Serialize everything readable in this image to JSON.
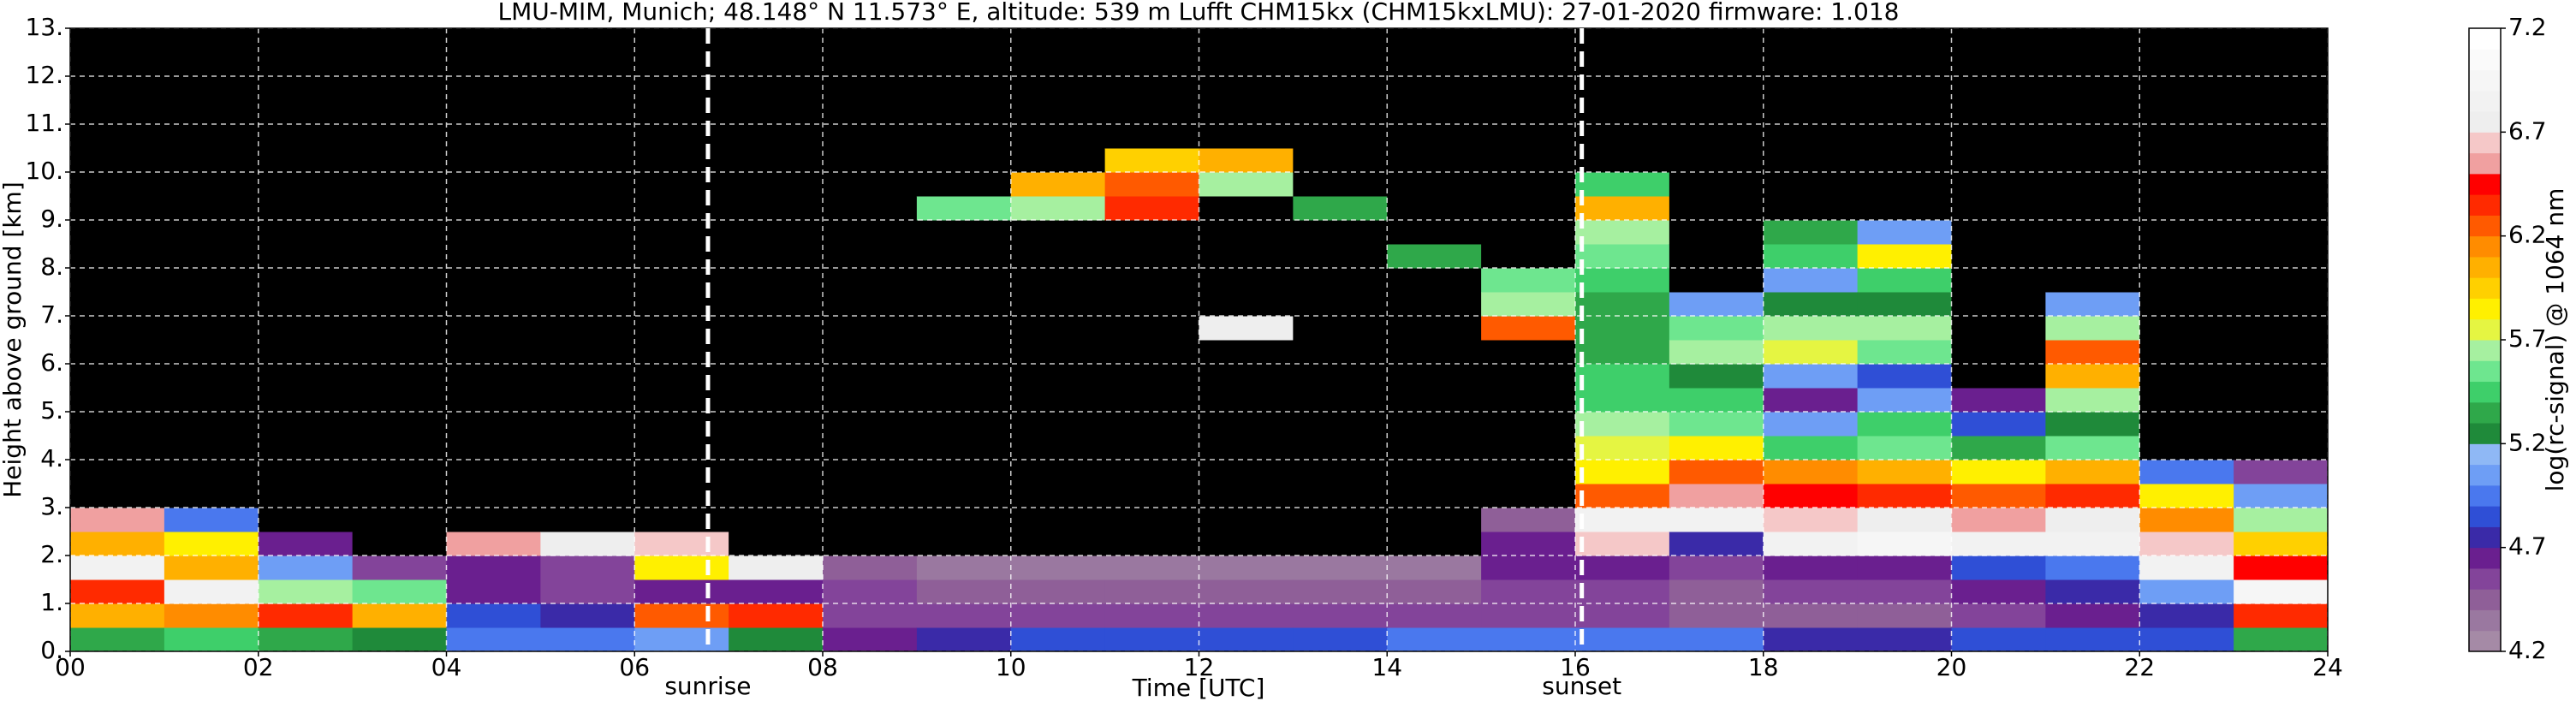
{
  "chart_data": {
    "type": "heatmap",
    "title": "LMU-MIM, Munich; 48.148° N 11.573° E, altitude: 539 m    Lufft CHM15kx (CHM15kxLMU): 27-01-2020    firmware: 1.018",
    "x_label": "Time [UTC]",
    "y_label": "Height above ground [km]",
    "xlim": [
      0,
      24
    ],
    "ylim": [
      0,
      13
    ],
    "xticks": [
      {
        "value": 0,
        "label": "00"
      },
      {
        "value": 2,
        "label": "02"
      },
      {
        "value": 4,
        "label": "04"
      },
      {
        "value": 6,
        "label": "06"
      },
      {
        "value": 8,
        "label": "08"
      },
      10,
      12,
      14,
      16,
      18,
      20,
      22,
      24
    ],
    "yticks": [
      {
        "value": 0,
        "label": "0."
      },
      {
        "value": 1,
        "label": "1."
      },
      {
        "value": 2,
        "label": "2."
      },
      {
        "value": 3,
        "label": "3."
      },
      {
        "value": 4,
        "label": "4."
      },
      {
        "value": 5,
        "label": "5."
      },
      {
        "value": 6,
        "label": "6."
      },
      {
        "value": 7,
        "label": "7."
      },
      {
        "value": 8,
        "label": "8."
      },
      {
        "value": 9,
        "label": "9."
      },
      {
        "value": 10,
        "label": "10."
      },
      {
        "value": 11,
        "label": "11."
      },
      {
        "value": 12,
        "label": "12."
      },
      {
        "value": 13,
        "label": "13."
      }
    ],
    "grid": true,
    "grid_color": "#ffffff",
    "x_edges": [
      0,
      1,
      2,
      3,
      4,
      5,
      6,
      7,
      8,
      9,
      10,
      11,
      12,
      13,
      14,
      15,
      16,
      17,
      18,
      19,
      20,
      21,
      22,
      23,
      24
    ],
    "y_edges": [
      0,
      0.5,
      1,
      1.5,
      2,
      2.5,
      3,
      3.5,
      4,
      4.5,
      5,
      5.5,
      6,
      6.5,
      7,
      7.5,
      8,
      8.5,
      9,
      9.5,
      10,
      10.5,
      11,
      11.5,
      12,
      12.5,
      13
    ],
    "z": [
      [
        5.3,
        6.0,
        6.3,
        6.8,
        6.0,
        6.5,
        4.0,
        4.0,
        4.0,
        4.0,
        4.0,
        4.0,
        4.0,
        4.0,
        4.0,
        4.0,
        4.0,
        4.0,
        4.0,
        4.0,
        4.0,
        4.0,
        4.0,
        4.0,
        4.0,
        4.0
      ],
      [
        5.4,
        6.1,
        6.8,
        6.0,
        5.8,
        4.9,
        4.0,
        4.0,
        4.0,
        4.0,
        4.0,
        4.0,
        4.0,
        4.0,
        4.0,
        4.0,
        4.0,
        4.0,
        4.0,
        4.0,
        4.0,
        4.0,
        4.0,
        4.0,
        4.0,
        4.0
      ],
      [
        5.3,
        6.3,
        5.6,
        5.0,
        4.6,
        4.0,
        4.0,
        4.0,
        4.0,
        4.0,
        4.0,
        4.0,
        4.0,
        4.0,
        4.0,
        4.0,
        4.0,
        4.0,
        4.0,
        4.0,
        4.0,
        4.0,
        4.0,
        4.0,
        4.0,
        4.0
      ],
      [
        5.2,
        6.0,
        5.5,
        4.5,
        4.0,
        4.0,
        4.0,
        4.0,
        4.0,
        4.0,
        4.0,
        4.0,
        4.0,
        4.0,
        4.0,
        4.0,
        4.0,
        4.0,
        4.0,
        4.0,
        4.0,
        4.0,
        4.0,
        4.0,
        4.0,
        4.0
      ],
      [
        4.9,
        4.8,
        4.6,
        4.6,
        6.5,
        4.0,
        4.0,
        4.0,
        4.0,
        4.0,
        4.0,
        4.0,
        4.0,
        4.0,
        4.0,
        4.0,
        4.0,
        4.0,
        4.0,
        4.0,
        4.0,
        4.0,
        4.0,
        4.0,
        4.0,
        4.0
      ],
      [
        4.9,
        4.7,
        4.5,
        4.5,
        6.7,
        4.0,
        4.0,
        4.0,
        4.0,
        4.0,
        4.0,
        4.0,
        4.0,
        4.0,
        4.0,
        4.0,
        4.0,
        4.0,
        4.0,
        4.0,
        4.0,
        4.0,
        4.0,
        4.0,
        4.0,
        4.0
      ],
      [
        5.0,
        6.2,
        4.6,
        5.8,
        6.6,
        4.0,
        4.0,
        4.0,
        4.0,
        4.0,
        4.0,
        4.0,
        4.0,
        4.0,
        4.0,
        4.0,
        4.0,
        4.0,
        4.0,
        4.0,
        4.0,
        4.0,
        4.0,
        4.0,
        4.0,
        4.0
      ],
      [
        5.2,
        6.3,
        4.6,
        6.7,
        4.0,
        4.0,
        4.0,
        4.0,
        4.0,
        4.0,
        4.0,
        4.0,
        4.0,
        4.0,
        4.0,
        4.0,
        4.0,
        4.0,
        4.0,
        4.0,
        4.0,
        4.0,
        4.0,
        4.0,
        4.0,
        4.0
      ],
      [
        4.6,
        4.5,
        4.5,
        4.4,
        4.0,
        4.0,
        4.0,
        4.0,
        4.0,
        4.0,
        4.0,
        4.0,
        4.0,
        4.0,
        4.0,
        4.0,
        4.0,
        4.0,
        4.0,
        4.0,
        4.0,
        4.0,
        4.0,
        4.0,
        4.0,
        4.0
      ],
      [
        4.7,
        4.5,
        4.4,
        4.3,
        4.0,
        4.0,
        4.0,
        4.0,
        4.0,
        4.0,
        4.0,
        4.0,
        4.0,
        4.0,
        4.0,
        4.0,
        4.0,
        4.0,
        5.5,
        4.0,
        4.0,
        4.0,
        4.0,
        4.0,
        4.0,
        4.0
      ],
      [
        4.8,
        4.5,
        4.4,
        4.3,
        4.0,
        4.0,
        4.0,
        4.0,
        4.0,
        4.0,
        4.0,
        4.0,
        4.0,
        4.0,
        4.0,
        4.0,
        4.0,
        4.0,
        5.6,
        6.0,
        4.0,
        4.0,
        4.0,
        4.0,
        4.0,
        4.0
      ],
      [
        4.8,
        4.5,
        4.4,
        4.3,
        4.0,
        4.0,
        4.0,
        4.0,
        4.0,
        4.0,
        4.0,
        4.0,
        4.0,
        4.0,
        4.0,
        4.0,
        4.0,
        4.0,
        6.3,
        6.2,
        5.9,
        4.0,
        4.0,
        4.0,
        4.0,
        4.0
      ],
      [
        4.8,
        4.5,
        4.4,
        4.3,
        4.0,
        4.0,
        4.0,
        4.0,
        4.0,
        4.0,
        4.0,
        4.0,
        4.0,
        6.7,
        4.0,
        4.0,
        4.0,
        4.0,
        4.0,
        5.6,
        6.0,
        4.0,
        4.0,
        4.0,
        4.0,
        4.0
      ],
      [
        4.8,
        4.5,
        4.4,
        4.3,
        4.0,
        4.0,
        4.0,
        4.0,
        4.0,
        4.0,
        4.0,
        4.0,
        4.0,
        4.0,
        4.0,
        4.0,
        4.0,
        4.0,
        5.3,
        4.0,
        4.0,
        4.0,
        4.0,
        4.0,
        4.0,
        4.0
      ],
      [
        4.9,
        4.5,
        4.4,
        4.3,
        4.0,
        4.0,
        4.0,
        4.0,
        4.0,
        4.0,
        4.0,
        4.0,
        4.0,
        4.0,
        4.0,
        4.0,
        5.3,
        4.0,
        4.0,
        4.0,
        4.0,
        4.0,
        4.0,
        4.0,
        4.0,
        4.0
      ],
      [
        4.9,
        4.5,
        4.5,
        4.6,
        4.6,
        4.4,
        4.0,
        4.0,
        4.0,
        4.0,
        4.0,
        4.0,
        4.0,
        6.2,
        5.6,
        5.5,
        4.0,
        4.0,
        4.0,
        4.0,
        4.0,
        4.0,
        4.0,
        4.0,
        4.0,
        4.0
      ],
      [
        4.9,
        4.5,
        4.5,
        4.6,
        6.6,
        6.8,
        6.2,
        5.8,
        5.7,
        5.6,
        5.4,
        5.4,
        5.3,
        5.3,
        5.3,
        5.4,
        5.5,
        5.6,
        6.0,
        5.4,
        4.0,
        4.0,
        4.0,
        4.0,
        4.0,
        4.0
      ],
      [
        4.9,
        4.4,
        4.4,
        4.5,
        4.7,
        6.8,
        6.5,
        6.2,
        5.8,
        5.5,
        5.4,
        5.2,
        5.6,
        5.5,
        5.0,
        4.0,
        4.0,
        4.0,
        4.0,
        4.0,
        4.0,
        4.0,
        4.0,
        4.0,
        4.0,
        4.0
      ],
      [
        4.7,
        4.4,
        4.5,
        4.6,
        6.8,
        6.6,
        6.4,
        6.1,
        5.4,
        5.0,
        4.6,
        5.0,
        5.7,
        5.6,
        5.2,
        5.0,
        5.4,
        5.3,
        4.0,
        4.0,
        4.0,
        4.0,
        4.0,
        4.0,
        4.0,
        4.0
      ],
      [
        4.7,
        4.4,
        4.5,
        4.6,
        6.9,
        6.7,
        6.3,
        6.0,
        5.5,
        5.4,
        5.0,
        4.8,
        5.5,
        5.6,
        5.2,
        5.4,
        5.8,
        5.0,
        4.0,
        4.0,
        4.0,
        4.0,
        4.0,
        4.0,
        4.0,
        4.0
      ],
      [
        4.8,
        4.5,
        4.6,
        4.8,
        6.8,
        6.5,
        6.2,
        5.8,
        5.3,
        4.8,
        4.6,
        4.0,
        4.0,
        4.0,
        4.0,
        4.0,
        4.0,
        4.0,
        4.0,
        4.0,
        4.0,
        4.0,
        4.0,
        4.0,
        4.0,
        4.0
      ],
      [
        4.8,
        4.6,
        4.7,
        4.9,
        6.8,
        6.7,
        6.3,
        6.0,
        5.5,
        5.2,
        5.6,
        6.0,
        6.2,
        5.6,
        5.0,
        4.0,
        4.0,
        4.0,
        4.0,
        4.0,
        4.0,
        4.0,
        4.0,
        4.0,
        4.0,
        4.0
      ],
      [
        4.8,
        4.7,
        5.0,
        6.8,
        6.6,
        6.1,
        5.8,
        4.9,
        4.0,
        4.0,
        4.0,
        4.0,
        4.0,
        4.0,
        4.0,
        4.0,
        4.0,
        4.0,
        4.0,
        4.0,
        4.0,
        4.0,
        4.0,
        4.0,
        4.0,
        4.0
      ],
      [
        5.3,
        6.3,
        6.9,
        6.4,
        5.9,
        5.6,
        5.0,
        4.5,
        4.0,
        4.0,
        4.0,
        4.0,
        4.0,
        4.0,
        4.0,
        4.0,
        4.0,
        4.0,
        4.0,
        4.0,
        4.0,
        4.0,
        4.0,
        4.0,
        4.0,
        4.0
      ]
    ],
    "vlines": [
      {
        "x": 6.78,
        "label": "sunrise"
      },
      {
        "x": 16.07,
        "label": "sunset"
      }
    ],
    "vline_color": "#ffffff",
    "colorbar": {
      "label": "log(rc-signal) @ 1064 nm",
      "under_color": "#000000",
      "bounds": [
        4.2,
        4.3,
        4.4,
        4.5,
        4.6,
        4.7,
        4.8,
        4.9,
        5.0,
        5.1,
        5.2,
        5.3,
        5.4,
        5.5,
        5.6,
        5.7,
        5.8,
        5.9,
        6.0,
        6.1,
        6.2,
        6.3,
        6.4,
        6.5,
        6.6,
        6.7,
        6.8,
        6.9,
        7.0,
        7.1,
        7.2
      ],
      "colors": [
        "#a58aa6",
        "#9a78a0",
        "#8f5f98",
        "#83449a",
        "#6a1f8f",
        "#3a2aa8",
        "#2f4fd6",
        "#4a78ee",
        "#6e9ef5",
        "#8fb8f5",
        "#1f8a3a",
        "#2fa84a",
        "#3ecf6a",
        "#6ee68f",
        "#a6f0a0",
        "#e5f542",
        "#fff000",
        "#ffd000",
        "#ffb000",
        "#ff8c00",
        "#ff5a00",
        "#ff2a00",
        "#ff0000",
        "#f0a0a0",
        "#f5c8c8",
        "#eeeeee",
        "#f2f2f2",
        "#f6f6f6",
        "#fafafa",
        "#ffffff"
      ],
      "ticks": [
        4.2,
        4.7,
        5.2,
        5.7,
        6.2,
        6.7,
        7.2
      ]
    }
  }
}
